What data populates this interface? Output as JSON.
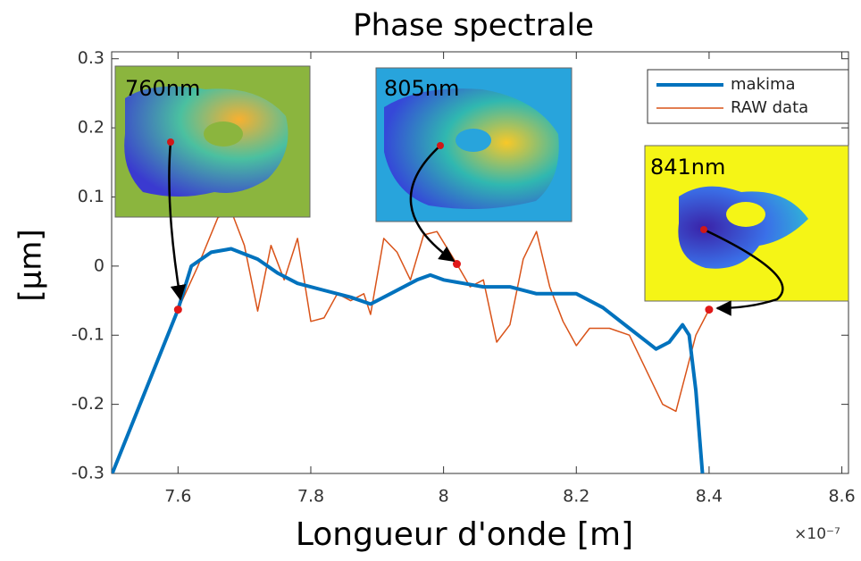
{
  "chart_data": {
    "type": "line",
    "title": "Phase spectrale",
    "x_label": "Longueur d'onde [m]",
    "y_label": "[µm]",
    "x_multiplier": "×10⁻⁷",
    "xlim": [
      7.5,
      8.61
    ],
    "ylim": [
      -0.3,
      0.31
    ],
    "xticks": [
      7.6,
      7.8,
      8,
      8.2,
      8.4,
      8.6
    ],
    "yticks": [
      0.3,
      0.2,
      0.1,
      0,
      -0.1,
      -0.2,
      -0.3
    ],
    "legend": "upper right",
    "series": [
      {
        "name": "makima",
        "color": "#0072bd",
        "width": 4,
        "x": [
          7.501,
          7.6,
          7.62,
          7.65,
          7.68,
          7.72,
          7.75,
          7.78,
          7.82,
          7.86,
          7.89,
          7.92,
          7.96,
          7.98,
          8.0,
          8.03,
          8.06,
          8.1,
          8.14,
          8.2,
          8.24,
          8.28,
          8.32,
          8.34,
          8.36,
          8.37,
          8.38,
          8.39
        ],
        "values": [
          -0.3,
          -0.063,
          0.0,
          0.02,
          0.025,
          0.01,
          -0.01,
          -0.025,
          -0.035,
          -0.045,
          -0.055,
          -0.04,
          -0.02,
          -0.013,
          -0.02,
          -0.025,
          -0.03,
          -0.03,
          -0.04,
          -0.04,
          -0.06,
          -0.09,
          -0.12,
          -0.11,
          -0.085,
          -0.1,
          -0.18,
          -0.3
        ]
      },
      {
        "name": "RAW data",
        "color": "#d95319",
        "width": 1.5,
        "x": [
          7.6,
          7.63,
          7.66,
          7.68,
          7.7,
          7.72,
          7.74,
          7.76,
          7.78,
          7.8,
          7.82,
          7.84,
          7.86,
          7.88,
          7.89,
          7.91,
          7.93,
          7.95,
          7.97,
          7.99,
          8.02,
          8.04,
          8.06,
          8.08,
          8.1,
          8.12,
          8.14,
          8.16,
          8.18,
          8.2,
          8.22,
          8.25,
          8.28,
          8.3,
          8.33,
          8.35,
          8.38,
          8.4
        ],
        "values": [
          -0.063,
          0.0,
          0.07,
          0.08,
          0.03,
          -0.065,
          0.03,
          -0.02,
          0.04,
          -0.08,
          -0.075,
          -0.04,
          -0.05,
          -0.04,
          -0.07,
          0.04,
          0.02,
          -0.02,
          0.045,
          0.05,
          0.003,
          -0.03,
          -0.02,
          -0.11,
          -0.085,
          0.01,
          0.05,
          -0.03,
          -0.08,
          -0.115,
          -0.09,
          -0.09,
          -0.1,
          -0.14,
          -0.2,
          -0.21,
          -0.1,
          -0.063
        ]
      }
    ],
    "highlights": [
      {
        "x": 7.6,
        "y": -0.063
      },
      {
        "x": 8.02,
        "y": 0.003
      },
      {
        "x": 8.4,
        "y": -0.063
      }
    ],
    "insets": [
      {
        "label": "760nm"
      },
      {
        "label": "805nm"
      },
      {
        "label": "841nm"
      }
    ]
  }
}
